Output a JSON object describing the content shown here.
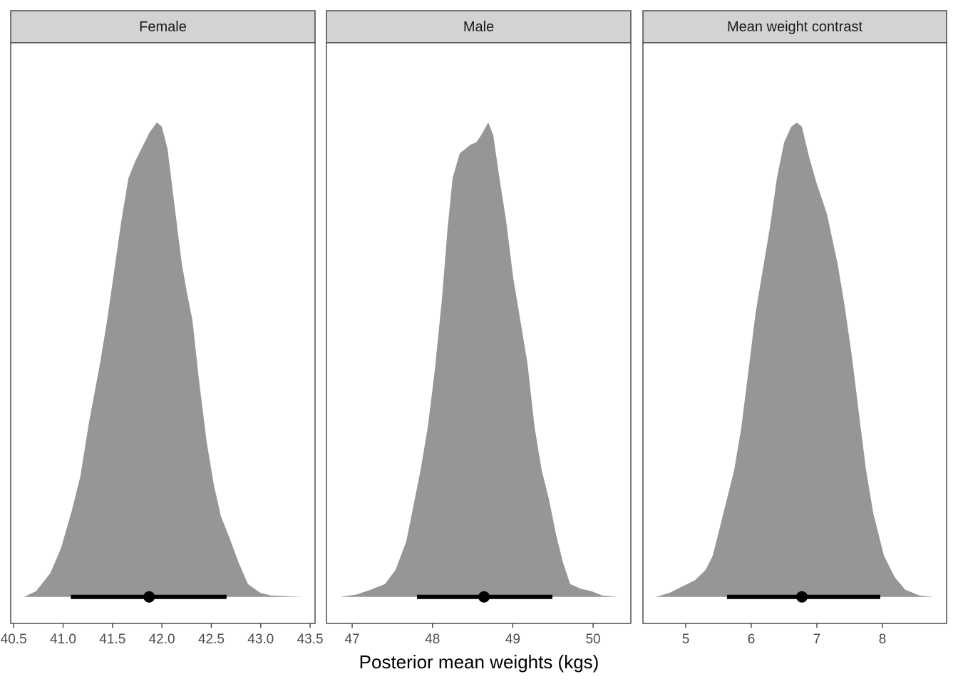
{
  "chart_data": [
    {
      "type": "density",
      "title": "Female",
      "color": "#969696",
      "x": [
        40.604,
        40.727,
        40.871,
        40.978,
        41.086,
        41.173,
        41.266,
        41.374,
        41.446,
        41.518,
        41.59,
        41.662,
        41.734,
        41.806,
        41.878,
        41.95,
        42.0,
        42.058,
        42.129,
        42.201,
        42.252,
        42.309,
        42.381,
        42.453,
        42.525,
        42.597,
        42.683,
        42.777,
        42.871,
        42.993,
        43.101,
        43.417
      ],
      "values": [
        0,
        0.012,
        0.05,
        0.102,
        0.18,
        0.252,
        0.372,
        0.492,
        0.583,
        0.688,
        0.793,
        0.883,
        0.92,
        0.95,
        0.98,
        1.0,
        0.991,
        0.943,
        0.823,
        0.703,
        0.643,
        0.583,
        0.447,
        0.327,
        0.237,
        0.17,
        0.125,
        0.072,
        0.027,
        0.009,
        0.003,
        0
      ],
      "point": 41.871,
      "interval": [
        41.079,
        42.655
      ],
      "xlim": [
        40.47,
        43.55
      ],
      "ylim": [
        -0.056,
        1.168
      ],
      "xticks": [
        40.5,
        {
          "value": 41,
          "label": "41.0"
        },
        41.5,
        {
          "value": 42,
          "label": "42.0"
        },
        42.5,
        {
          "value": 43,
          "label": "43.0"
        },
        43.5
      ]
    },
    {
      "type": "density",
      "title": "Male",
      "color": "#969696",
      "xlabel": "Posterior mean weights (kgs)",
      "x": [
        46.849,
        47.053,
        47.231,
        47.408,
        47.541,
        47.674,
        47.763,
        47.852,
        47.941,
        48.029,
        48.118,
        48.189,
        48.251,
        48.34,
        48.473,
        48.544,
        48.606,
        48.695,
        48.757,
        48.828,
        48.917,
        49.005,
        49.094,
        49.183,
        49.272,
        49.36,
        49.449,
        49.538,
        49.626,
        49.715,
        49.848,
        49.981,
        50.114,
        50.301
      ],
      "values": [
        0,
        0.005,
        0.015,
        0.027,
        0.057,
        0.117,
        0.192,
        0.267,
        0.357,
        0.477,
        0.628,
        0.778,
        0.883,
        0.935,
        0.953,
        0.958,
        0.973,
        1.0,
        0.973,
        0.89,
        0.793,
        0.673,
        0.583,
        0.492,
        0.357,
        0.267,
        0.207,
        0.132,
        0.072,
        0.027,
        0.017,
        0.012,
        0.003,
        0
      ],
      "point": 48.642,
      "interval": [
        47.807,
        49.493
      ],
      "xlim": [
        46.68,
        50.47
      ],
      "ylim": [
        -0.056,
        1.168
      ],
      "xticks": [
        47,
        48,
        49,
        50
      ]
    },
    {
      "type": "density",
      "title": "Mean weight contrast",
      "color": "#969696",
      "x": [
        4.543,
        4.761,
        4.978,
        5.141,
        5.304,
        5.413,
        5.522,
        5.63,
        5.739,
        5.848,
        5.957,
        6.065,
        6.174,
        6.283,
        6.391,
        6.5,
        6.609,
        6.696,
        6.772,
        6.88,
        6.989,
        7.152,
        7.315,
        7.424,
        7.533,
        7.641,
        7.75,
        7.859,
        8.022,
        8.185,
        8.348,
        8.565,
        8.783
      ],
      "values": [
        0,
        0.009,
        0.024,
        0.035,
        0.057,
        0.087,
        0.147,
        0.207,
        0.267,
        0.357,
        0.477,
        0.598,
        0.688,
        0.778,
        0.883,
        0.958,
        0.991,
        1.0,
        0.991,
        0.928,
        0.875,
        0.808,
        0.703,
        0.613,
        0.508,
        0.387,
        0.267,
        0.177,
        0.087,
        0.042,
        0.015,
        0.003,
        0
      ],
      "point": 6.772,
      "interval": [
        5.63,
        7.967
      ],
      "xlim": [
        4.348,
        8.978
      ],
      "ylim": [
        -0.056,
        1.168
      ],
      "xticks": [
        5,
        6,
        7,
        8
      ]
    }
  ]
}
